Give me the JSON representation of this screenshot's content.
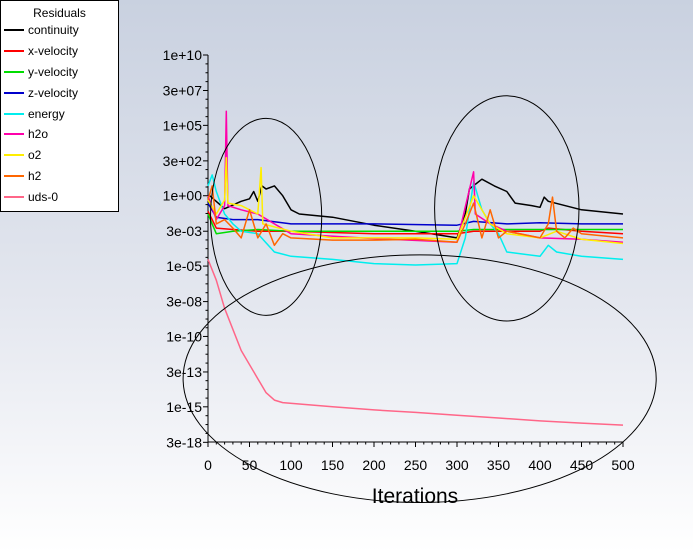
{
  "chart_data": {
    "type": "line",
    "title": "",
    "xlabel": "Iterations",
    "ylabel": "",
    "xlim": [
      0,
      500
    ],
    "ylim_exponent": [
      -17.5,
      10
    ],
    "y_scale": "log",
    "xticks": [
      0,
      50,
      100,
      150,
      200,
      250,
      300,
      350,
      400,
      450,
      500
    ],
    "yticks": [
      {
        "label": "1e+10",
        "value": 10000000000.0
      },
      {
        "label": "3e+07",
        "value": 30000000.0
      },
      {
        "label": "1e+05",
        "value": 100000.0
      },
      {
        "label": "3e+02",
        "value": 300.0
      },
      {
        "label": "1e+00",
        "value": 1
      },
      {
        "label": "3e-03",
        "value": 0.003
      },
      {
        "label": "1e-05",
        "value": 1e-05
      },
      {
        "label": "3e-08",
        "value": 3e-08
      },
      {
        "label": "1e-10",
        "value": 1e-10
      },
      {
        "label": "3e-13",
        "value": 3e-13
      },
      {
        "label": "1e-15",
        "value": 1e-15
      },
      {
        "label": "3e-18",
        "value": 3e-18
      }
    ],
    "legend_title": "Residuals",
    "legend_position": "top-left",
    "series": [
      {
        "name": "continuity",
        "color": "#000000",
        "points": [
          [
            0,
            1
          ],
          [
            2,
            1
          ],
          [
            20,
            0.12
          ],
          [
            40,
            0.4
          ],
          [
            50,
            0.6
          ],
          [
            55,
            2
          ],
          [
            60,
            0.4
          ],
          [
            65,
            5
          ],
          [
            70,
            3
          ],
          [
            80,
            5
          ],
          [
            90,
            1
          ],
          [
            100,
            0.1
          ],
          [
            110,
            0.05
          ],
          [
            150,
            0.03
          ],
          [
            200,
            0.008
          ],
          [
            250,
            0.003
          ],
          [
            300,
            0.001
          ],
          [
            310,
            0.05
          ],
          [
            315,
            3
          ],
          [
            330,
            15
          ],
          [
            345,
            5
          ],
          [
            360,
            2
          ],
          [
            370,
            0.3
          ],
          [
            390,
            0.2
          ],
          [
            400,
            0.15
          ],
          [
            405,
            0.8
          ],
          [
            410,
            0.4
          ],
          [
            450,
            0.1
          ],
          [
            500,
            0.05
          ]
        ]
      },
      {
        "name": "x-velocity",
        "color": "#ff0000",
        "points": [
          [
            0,
            0.08
          ],
          [
            10,
            0.005
          ],
          [
            30,
            0.004
          ],
          [
            60,
            0.003
          ],
          [
            100,
            0.003
          ],
          [
            200,
            0.002
          ],
          [
            300,
            0.002
          ],
          [
            320,
            0.003
          ],
          [
            360,
            0.003
          ],
          [
            400,
            0.003
          ],
          [
            410,
            0.005
          ],
          [
            450,
            0.003
          ],
          [
            500,
            0.002
          ]
        ]
      },
      {
        "name": "y-velocity",
        "color": "#00dd00",
        "points": [
          [
            0,
            0.05
          ],
          [
            10,
            0.002
          ],
          [
            30,
            0.003
          ],
          [
            60,
            0.004
          ],
          [
            100,
            0.003
          ],
          [
            200,
            0.003
          ],
          [
            300,
            0.003
          ],
          [
            320,
            0.004
          ],
          [
            360,
            0.004
          ],
          [
            400,
            0.004
          ],
          [
            450,
            0.004
          ],
          [
            500,
            0.004
          ]
        ]
      },
      {
        "name": "z-velocity",
        "color": "#0000cc",
        "points": [
          [
            0,
            0.3
          ],
          [
            10,
            0.03
          ],
          [
            30,
            0.02
          ],
          [
            60,
            0.02
          ],
          [
            100,
            0.01
          ],
          [
            200,
            0.01
          ],
          [
            300,
            0.008
          ],
          [
            320,
            0.015
          ],
          [
            360,
            0.01
          ],
          [
            400,
            0.012
          ],
          [
            450,
            0.01
          ],
          [
            500,
            0.01
          ]
        ]
      },
      {
        "name": "energy",
        "color": "#00eeee",
        "points": [
          [
            0,
            5
          ],
          [
            5,
            30
          ],
          [
            10,
            2
          ],
          [
            20,
            0.05
          ],
          [
            30,
            0.01
          ],
          [
            40,
            0.003
          ],
          [
            60,
            0.002
          ],
          [
            80,
            0.0001
          ],
          [
            100,
            5e-05
          ],
          [
            150,
            3e-05
          ],
          [
            200,
            1.5e-05
          ],
          [
            250,
            1.2e-05
          ],
          [
            300,
            1.5e-05
          ],
          [
            310,
            0.001
          ],
          [
            320,
            10
          ],
          [
            330,
            0.1
          ],
          [
            340,
            0.01
          ],
          [
            350,
            0.002
          ],
          [
            360,
            0.0001
          ],
          [
            400,
            5e-05
          ],
          [
            410,
            0.0003
          ],
          [
            420,
            0.0001
          ],
          [
            450,
            5e-05
          ],
          [
            500,
            3e-05
          ]
        ]
      },
      {
        "name": "h2o",
        "color": "#ff00aa",
        "points": [
          [
            0,
            1
          ],
          [
            10,
            0.02
          ],
          [
            20,
            0.2
          ],
          [
            22,
            1000000
          ],
          [
            24,
            0.2
          ],
          [
            40,
            0.1
          ],
          [
            60,
            0.05
          ],
          [
            100,
            0.002
          ],
          [
            200,
            0.0009
          ],
          [
            300,
            0.0005
          ],
          [
            320,
            50
          ],
          [
            322,
            0.05
          ],
          [
            340,
            0.01
          ],
          [
            360,
            0.003
          ],
          [
            400,
            0.001
          ],
          [
            450,
            0.0008
          ],
          [
            500,
            0.0005
          ]
        ]
      },
      {
        "name": "o2",
        "color": "#ffee00",
        "points": [
          [
            0,
            0.5
          ],
          [
            10,
            0.05
          ],
          [
            20,
            0.5
          ],
          [
            22,
            500
          ],
          [
            24,
            0.3
          ],
          [
            40,
            0.2
          ],
          [
            60,
            0.05
          ],
          [
            64,
            100
          ],
          [
            66,
            0.01
          ],
          [
            100,
            0.003
          ],
          [
            150,
            0.001
          ],
          [
            200,
            0.001
          ],
          [
            250,
            0.001
          ],
          [
            300,
            0.0008
          ],
          [
            320,
            1
          ],
          [
            340,
            0.01
          ],
          [
            360,
            0.002
          ],
          [
            400,
            0.001
          ],
          [
            420,
            0.003
          ],
          [
            450,
            0.0008
          ],
          [
            500,
            0.0004
          ]
        ]
      },
      {
        "name": "h2",
        "color": "#ff6600",
        "points": [
          [
            0,
            0.5
          ],
          [
            5,
            5
          ],
          [
            10,
            0.01
          ],
          [
            20,
            0.02
          ],
          [
            30,
            0.005
          ],
          [
            40,
            0.001
          ],
          [
            50,
            0.1
          ],
          [
            60,
            0.001
          ],
          [
            70,
            0.01
          ],
          [
            80,
            0.0003
          ],
          [
            90,
            0.002
          ],
          [
            100,
            0.001
          ],
          [
            150,
            0.0007
          ],
          [
            200,
            0.0007
          ],
          [
            250,
            0.0008
          ],
          [
            300,
            0.0005
          ],
          [
            310,
            0.01
          ],
          [
            320,
            0.3
          ],
          [
            330,
            0.001
          ],
          [
            340,
            0.1
          ],
          [
            350,
            0.001
          ],
          [
            360,
            0.003
          ],
          [
            400,
            0.001
          ],
          [
            410,
            0.01
          ],
          [
            415,
            0.8
          ],
          [
            420,
            0.003
          ],
          [
            430,
            0.001
          ],
          [
            440,
            0.005
          ],
          [
            450,
            0.002
          ],
          [
            500,
            0.001
          ]
        ]
      },
      {
        "name": "uds-0",
        "color": "#ff6688",
        "points": [
          [
            0,
            3e-05
          ],
          [
            10,
            1e-06
          ],
          [
            20,
            1e-08
          ],
          [
            40,
            1e-11
          ],
          [
            60,
            1e-13
          ],
          [
            70,
            1e-14
          ],
          [
            80,
            3e-15
          ],
          [
            90,
            2e-15
          ],
          [
            150,
            1e-15
          ],
          [
            200,
            6e-16
          ],
          [
            250,
            4e-16
          ],
          [
            300,
            2.5e-16
          ],
          [
            350,
            1.6e-16
          ],
          [
            400,
            1e-16
          ],
          [
            450,
            7e-17
          ],
          [
            500,
            5e-17
          ]
        ]
      }
    ],
    "annotations": [
      {
        "shape": "ellipse",
        "cx": 70,
        "cy_exponent": -1.5,
        "rx": 67,
        "ry_decades": 7
      },
      {
        "shape": "ellipse",
        "cx": 360,
        "cy_exponent": -0.9,
        "rx": 87,
        "ry_decades": 8
      },
      {
        "shape": "ellipse",
        "cx": 255,
        "cy_exponent": -13,
        "rx": 285,
        "ry_decades": 8.8
      }
    ]
  }
}
